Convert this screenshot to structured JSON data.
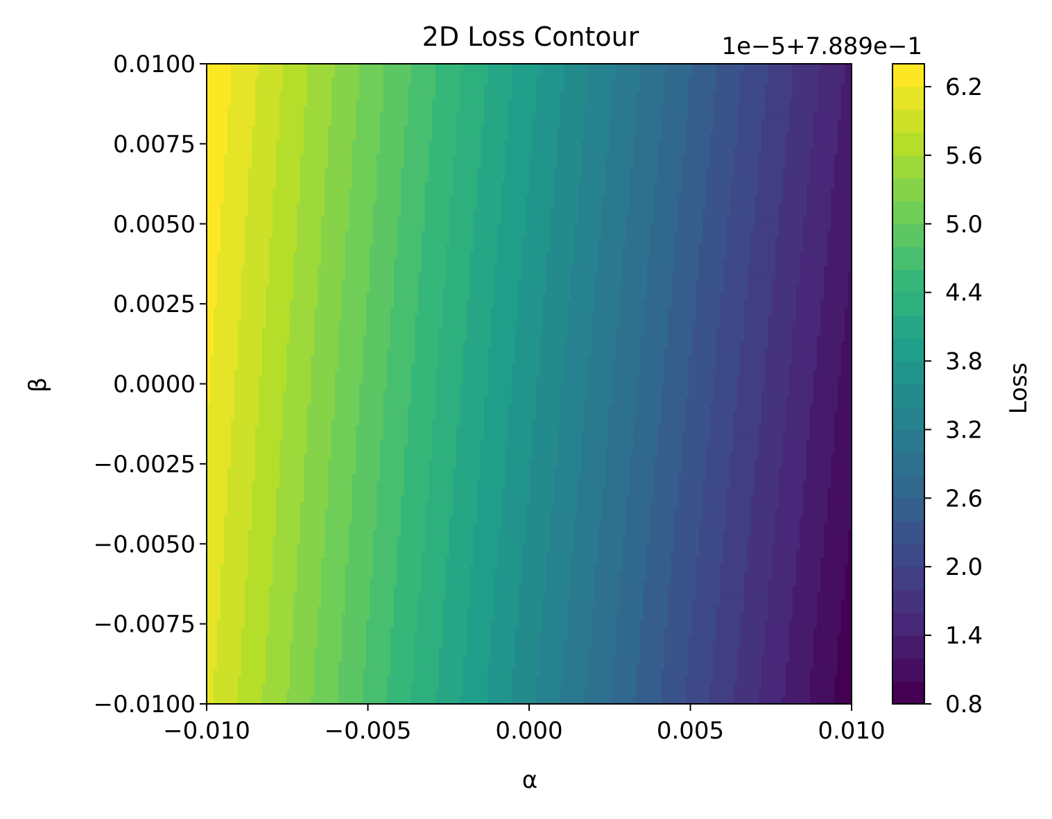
{
  "chart_data": {
    "type": "heatmap",
    "subtype": "filled-contour",
    "title": "2D Loss Contour",
    "xlabel": "α",
    "ylabel": "β",
    "xlim": [
      -0.01,
      0.01
    ],
    "ylim": [
      -0.01,
      0.01
    ],
    "x_ticks": [
      "−0.010",
      "−0.005",
      "0.000",
      "0.005",
      "0.010"
    ],
    "y_ticks": [
      "−0.0100",
      "−0.0075",
      "−0.0050",
      "−0.0025",
      "0.0000",
      "0.0025",
      "0.0050",
      "0.0075",
      "0.0100"
    ],
    "x_tick_values": [
      -0.01,
      -0.005,
      0.0,
      0.005,
      0.01
    ],
    "y_tick_values": [
      -0.01,
      -0.0075,
      -0.005,
      -0.0025,
      0.0,
      0.0025,
      0.005,
      0.0075,
      0.01
    ],
    "colorbar": {
      "label": "Loss",
      "ticks": [
        "0.8",
        "1.4",
        "2.0",
        "2.6",
        "3.2",
        "3.8",
        "4.4",
        "5.0",
        "5.6",
        "6.2"
      ],
      "tick_values": [
        0.8,
        1.4,
        2.0,
        2.6,
        3.2,
        3.8,
        4.4,
        5.0,
        5.6,
        6.2
      ],
      "offset_text": "1e−5+7.889e−1",
      "range": [
        0.8,
        6.4
      ],
      "level_step": 0.2,
      "colormap": "viridis"
    },
    "field": {
      "description_units": "displayed value in units of 1e-5 above 0.7889",
      "value_at_x_min_y_max": 6.4,
      "value_at_x_min_y_min": 6.05,
      "value_at_x_max_y_max": 1.35,
      "value_at_x_max_y_min": 0.85,
      "gradient": "decreases roughly linearly with alpha, slight dependence on beta"
    },
    "grid": false,
    "colors": {
      "viridis_stops": [
        "#440154",
        "#482878",
        "#3e4989",
        "#31688e",
        "#26828e",
        "#1f9e89",
        "#35b779",
        "#6ece58",
        "#b5de2b",
        "#fde725"
      ]
    }
  }
}
